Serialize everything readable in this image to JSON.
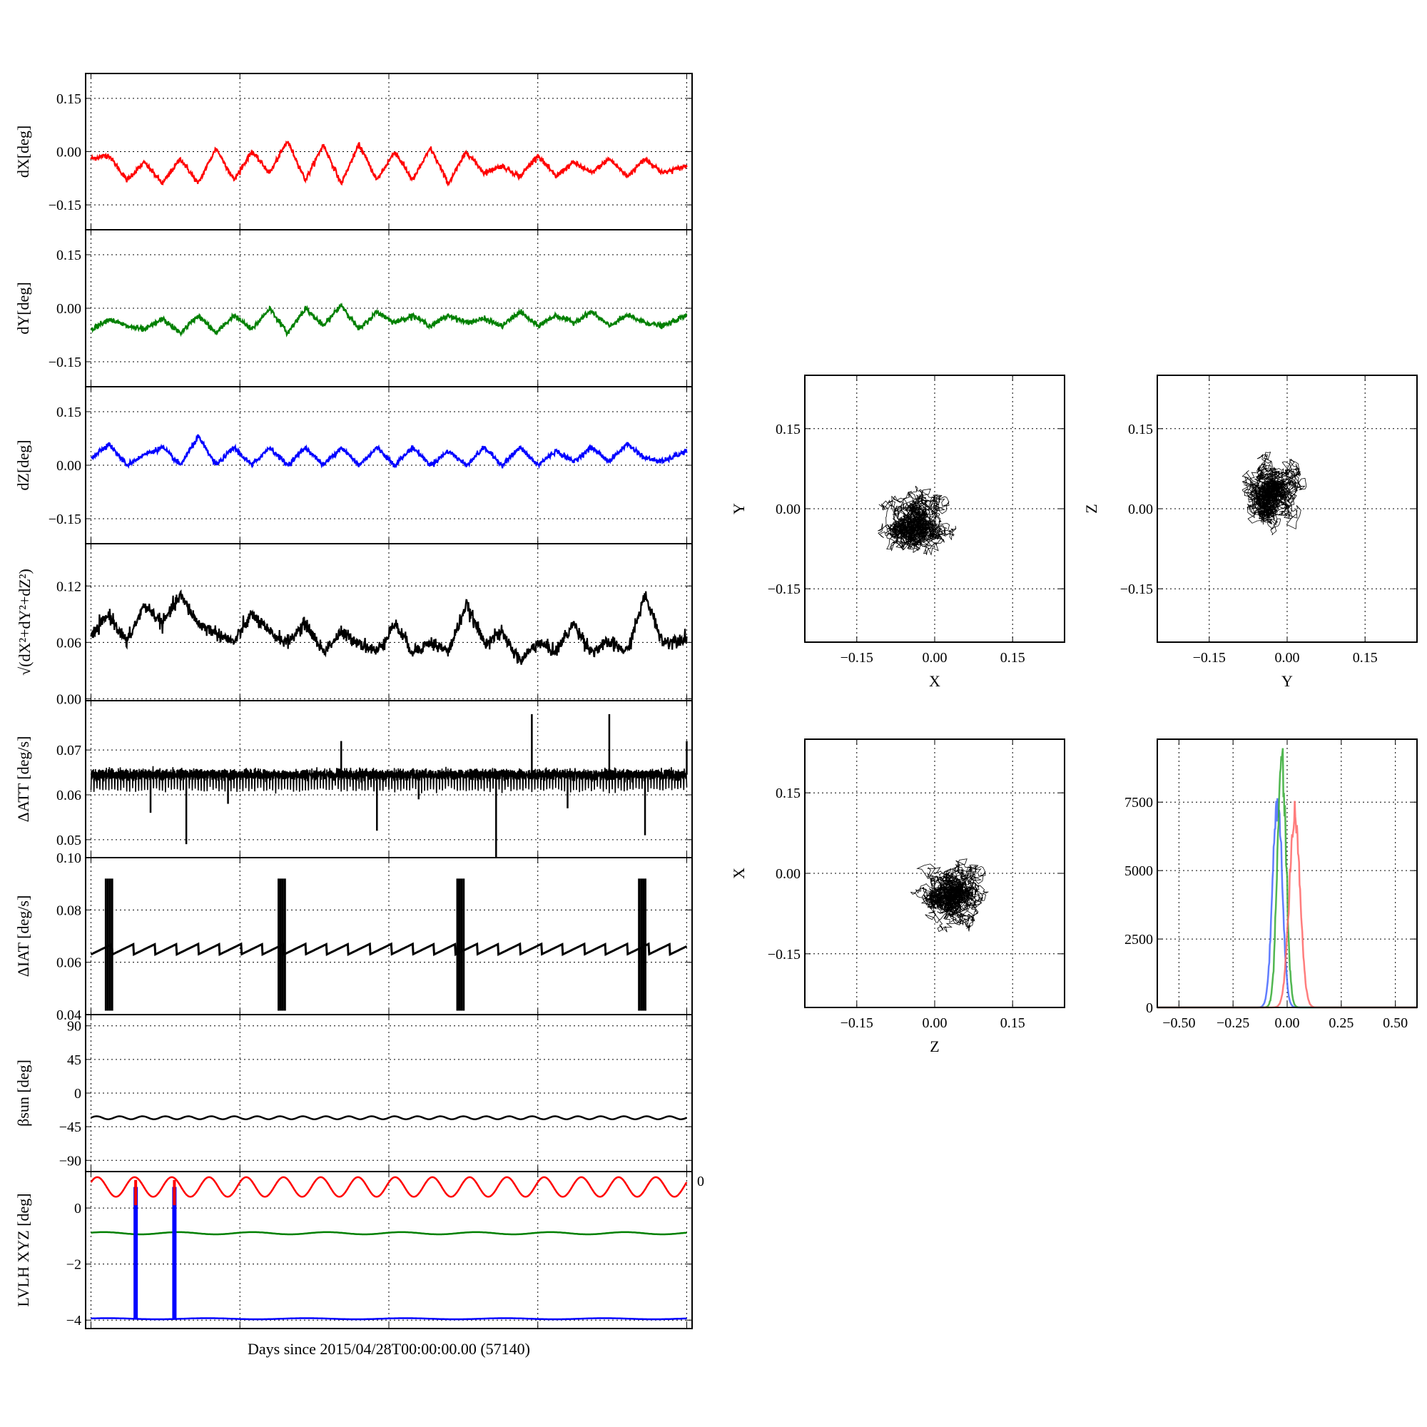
{
  "figure": {
    "xlabel": "Days since 2015/04/28T00:00:00.00 (57140)",
    "partial_tick_label": "0"
  },
  "chart_data": [
    {
      "id": "dX",
      "type": "line",
      "ylabel": "dX[deg]",
      "ylim": [
        -0.22,
        0.22
      ],
      "yticks": [
        -0.15,
        0.0,
        0.15
      ],
      "yticklabels": [
        "−0.15",
        "0.00",
        "0.15"
      ],
      "xlim": [
        0,
        100
      ],
      "xticks": [
        0,
        25,
        50,
        75,
        100
      ],
      "grid": true,
      "color": "#ff0000",
      "series": [
        {
          "name": "",
          "x": [
            0,
            3,
            6,
            9,
            12,
            15,
            18,
            21,
            24,
            27,
            30,
            33,
            36,
            39,
            42,
            45,
            48,
            51,
            54,
            57,
            60,
            63,
            66,
            69,
            72,
            75,
            78,
            81,
            84,
            87,
            90,
            93,
            96,
            100
          ],
          "values": [
            -0.02,
            -0.01,
            -0.08,
            -0.03,
            -0.09,
            -0.02,
            -0.09,
            0.01,
            -0.08,
            0.0,
            -0.06,
            0.03,
            -0.08,
            0.02,
            -0.09,
            0.02,
            -0.08,
            0.0,
            -0.08,
            0.01,
            -0.09,
            0.0,
            -0.06,
            -0.04,
            -0.07,
            -0.01,
            -0.07,
            -0.03,
            -0.06,
            -0.02,
            -0.07,
            -0.02,
            -0.06,
            -0.04
          ]
        }
      ]
    },
    {
      "id": "dY",
      "type": "line",
      "ylabel": "dY[deg]",
      "ylim": [
        -0.22,
        0.22
      ],
      "yticks": [
        -0.15,
        0.0,
        0.15
      ],
      "yticklabels": [
        "−0.15",
        "0.00",
        "0.15"
      ],
      "xlim": [
        0,
        100
      ],
      "xticks": [
        0,
        25,
        50,
        75,
        100
      ],
      "grid": true,
      "color": "#008000",
      "series": [
        {
          "name": "",
          "x": [
            0,
            3,
            6,
            9,
            12,
            15,
            18,
            21,
            24,
            27,
            30,
            33,
            36,
            39,
            42,
            45,
            48,
            51,
            54,
            57,
            60,
            63,
            66,
            69,
            72,
            75,
            78,
            81,
            84,
            87,
            90,
            93,
            96,
            100
          ],
          "values": [
            -0.06,
            -0.03,
            -0.05,
            -0.06,
            -0.03,
            -0.07,
            -0.02,
            -0.07,
            -0.02,
            -0.06,
            0.0,
            -0.07,
            0.0,
            -0.05,
            0.01,
            -0.06,
            -0.01,
            -0.04,
            -0.02,
            -0.05,
            -0.02,
            -0.04,
            -0.03,
            -0.05,
            -0.01,
            -0.05,
            -0.02,
            -0.04,
            -0.01,
            -0.05,
            -0.02,
            -0.04,
            -0.05,
            -0.02
          ]
        }
      ]
    },
    {
      "id": "dZ",
      "type": "line",
      "ylabel": "dZ[deg]",
      "ylim": [
        -0.22,
        0.22
      ],
      "yticks": [
        -0.15,
        0.0,
        0.15
      ],
      "yticklabels": [
        "−0.15",
        "0.00",
        "0.15"
      ],
      "xlim": [
        0,
        100
      ],
      "xticks": [
        0,
        25,
        50,
        75,
        100
      ],
      "grid": true,
      "color": "#0000ff",
      "series": [
        {
          "name": "",
          "x": [
            0,
            3,
            6,
            9,
            12,
            15,
            18,
            21,
            24,
            27,
            30,
            33,
            36,
            39,
            42,
            45,
            48,
            51,
            54,
            57,
            60,
            63,
            66,
            69,
            72,
            75,
            78,
            81,
            84,
            87,
            90,
            93,
            96,
            100
          ],
          "values": [
            0.02,
            0.06,
            0.0,
            0.03,
            0.05,
            0.0,
            0.08,
            0.0,
            0.05,
            0.0,
            0.05,
            0.0,
            0.05,
            0.0,
            0.05,
            0.0,
            0.05,
            0.0,
            0.05,
            0.0,
            0.04,
            0.0,
            0.05,
            0.0,
            0.05,
            0.0,
            0.04,
            0.01,
            0.05,
            0.01,
            0.06,
            0.02,
            0.01,
            0.04
          ]
        }
      ]
    },
    {
      "id": "norm",
      "type": "line",
      "ylabel": "√(dX²+dY²+dZ²)",
      "ylim": [
        -0.002,
        0.165
      ],
      "yticks": [
        0.0,
        0.06,
        0.12
      ],
      "yticklabels": [
        "0.00",
        "0.06",
        "0.12"
      ],
      "xlim": [
        0,
        100
      ],
      "xticks": [
        0,
        25,
        50,
        75,
        100
      ],
      "grid": true,
      "color": "#000000",
      "series": [
        {
          "name": "",
          "x": [
            0,
            3,
            6,
            9,
            12,
            15,
            18,
            21,
            24,
            27,
            30,
            33,
            36,
            39,
            42,
            45,
            48,
            51,
            54,
            57,
            60,
            63,
            66,
            69,
            72,
            75,
            78,
            81,
            84,
            87,
            90,
            93,
            96,
            100
          ],
          "values": [
            0.065,
            0.09,
            0.06,
            0.1,
            0.08,
            0.11,
            0.08,
            0.07,
            0.06,
            0.09,
            0.07,
            0.06,
            0.08,
            0.05,
            0.07,
            0.06,
            0.05,
            0.08,
            0.05,
            0.06,
            0.05,
            0.1,
            0.06,
            0.07,
            0.04,
            0.06,
            0.05,
            0.08,
            0.05,
            0.06,
            0.05,
            0.11,
            0.06,
            0.065
          ]
        }
      ]
    },
    {
      "id": "datt",
      "type": "line",
      "ylabel": "ΔATT [deg/s]",
      "ylim": [
        0.046,
        0.081
      ],
      "yticks": [
        0.05,
        0.06,
        0.07
      ],
      "yticklabels": [
        "0.05",
        "0.06",
        "0.07"
      ],
      "xlim": [
        0,
        100
      ],
      "xticks": [
        0,
        25,
        50,
        75,
        100
      ],
      "grid": true,
      "color": "#000000",
      "baseline": 0.0645,
      "spikes": [
        [
          10,
          0.056
        ],
        [
          16,
          0.049
        ],
        [
          23,
          0.058
        ],
        [
          42,
          0.072
        ],
        [
          48,
          0.052
        ],
        [
          55,
          0.059
        ],
        [
          68,
          0.046
        ],
        [
          74,
          0.078
        ],
        [
          80,
          0.057
        ],
        [
          87,
          0.078
        ],
        [
          93,
          0.051
        ],
        [
          100,
          0.072
        ]
      ]
    },
    {
      "id": "diat",
      "type": "line",
      "ylabel": "ΔIAT [deg/s]",
      "ylim": [
        0.04,
        0.1
      ],
      "yticks": [
        0.04,
        0.06,
        0.08,
        0.1
      ],
      "yticklabels": [
        "0.04",
        "0.06",
        "0.08",
        "0.10"
      ],
      "xlim": [
        0,
        100
      ],
      "xticks": [
        0,
        25,
        50,
        75,
        100
      ],
      "grid": true,
      "color": "#000000",
      "base_range": [
        0.063,
        0.067
      ],
      "bursts": [
        2.5,
        31.5,
        61.5,
        92
      ]
    },
    {
      "id": "beta",
      "type": "line",
      "ylabel": "βsun [deg]",
      "ylim": [
        -105,
        105
      ],
      "yticks": [
        -90,
        -45,
        0,
        45,
        90
      ],
      "yticklabels": [
        "−90",
        "−45",
        "0",
        "45",
        "90"
      ],
      "xlim": [
        0,
        100
      ],
      "xticks": [
        0,
        25,
        50,
        75,
        100
      ],
      "grid": true,
      "color": "#000000",
      "mean": -33,
      "amplitude": 2,
      "cycles": 26
    },
    {
      "id": "lvlh",
      "type": "line",
      "ylabel": "LVLH XYZ [deg]",
      "ylim": [
        -4.3,
        1.3
      ],
      "yticks": [
        -4,
        -2,
        0
      ],
      "yticklabels": [
        "−4",
        "−2",
        "0"
      ],
      "xlim": [
        0,
        100
      ],
      "xticks": [
        0,
        25,
        50,
        75,
        100
      ],
      "grid": true,
      "series": [
        {
          "name": "",
          "color": "#ff0000",
          "mean": 0.75,
          "amplitude": 0.35,
          "cycles": 16
        },
        {
          "name": "",
          "color": "#008000",
          "mean": -0.9,
          "amplitude": 0.04,
          "cycles": 8
        },
        {
          "name": "",
          "color": "#0000ff",
          "mean": -3.95,
          "amplitude": 0.02,
          "cycles": 6,
          "drops": [
            7.5,
            14
          ]
        }
      ]
    },
    {
      "id": "scatter_xy",
      "type": "scatter",
      "xlabel": "X",
      "ylabel": "Y",
      "xlim": [
        -0.25,
        0.25
      ],
      "ylim": [
        -0.25,
        0.25
      ],
      "ticks": [
        -0.15,
        0.0,
        0.15
      ],
      "ticklabels": [
        "−0.15",
        "0.00",
        "0.15"
      ],
      "grid": true,
      "cluster": {
        "cx": -0.04,
        "cy": -0.03,
        "sx": 0.022,
        "sy": 0.021
      }
    },
    {
      "id": "scatter_yz",
      "type": "scatter",
      "xlabel": "Y",
      "ylabel": "Z",
      "xlim": [
        -0.25,
        0.25
      ],
      "ylim": [
        -0.25,
        0.25
      ],
      "ticks": [
        -0.15,
        0.0,
        0.15
      ],
      "ticklabels": [
        "−0.15",
        "0.00",
        "0.15"
      ],
      "grid": true,
      "cluster": {
        "cx": -0.03,
        "cy": 0.025,
        "sx": 0.018,
        "sy": 0.017
      }
    },
    {
      "id": "scatter_zx",
      "type": "scatter",
      "xlabel": "Z",
      "ylabel": "X",
      "xlim": [
        -0.25,
        0.25
      ],
      "ylim": [
        -0.25,
        0.25
      ],
      "ticks": [
        -0.15,
        0.0,
        0.15
      ],
      "ticklabels": [
        "−0.15",
        "0.00",
        "0.15"
      ],
      "grid": true,
      "cluster": {
        "cx": 0.03,
        "cy": -0.04,
        "sx": 0.02,
        "sy": 0.024
      }
    },
    {
      "id": "histogram",
      "type": "line",
      "xlim": [
        -0.6,
        0.6
      ],
      "ylim": [
        0,
        9800
      ],
      "xticks": [
        -0.5,
        -0.25,
        0.0,
        0.25,
        0.5
      ],
      "xticklabels": [
        "−0.50",
        "−0.25",
        "0.00",
        "0.25",
        "0.50"
      ],
      "yticks": [
        0,
        2500,
        5000,
        7500
      ],
      "yticklabels": [
        "0",
        "2500",
        "5000",
        "7500"
      ],
      "grid": true,
      "series": [
        {
          "name": "",
          "color": "#4466ff",
          "center": -0.045,
          "sigma": 0.022,
          "peak": 7600
        },
        {
          "name": "",
          "color": "#33aa33",
          "center": -0.025,
          "sigma": 0.02,
          "peak": 9000
        },
        {
          "name": "",
          "color": "#ff6666",
          "center": 0.035,
          "sigma": 0.025,
          "peak": 7000
        }
      ]
    }
  ]
}
